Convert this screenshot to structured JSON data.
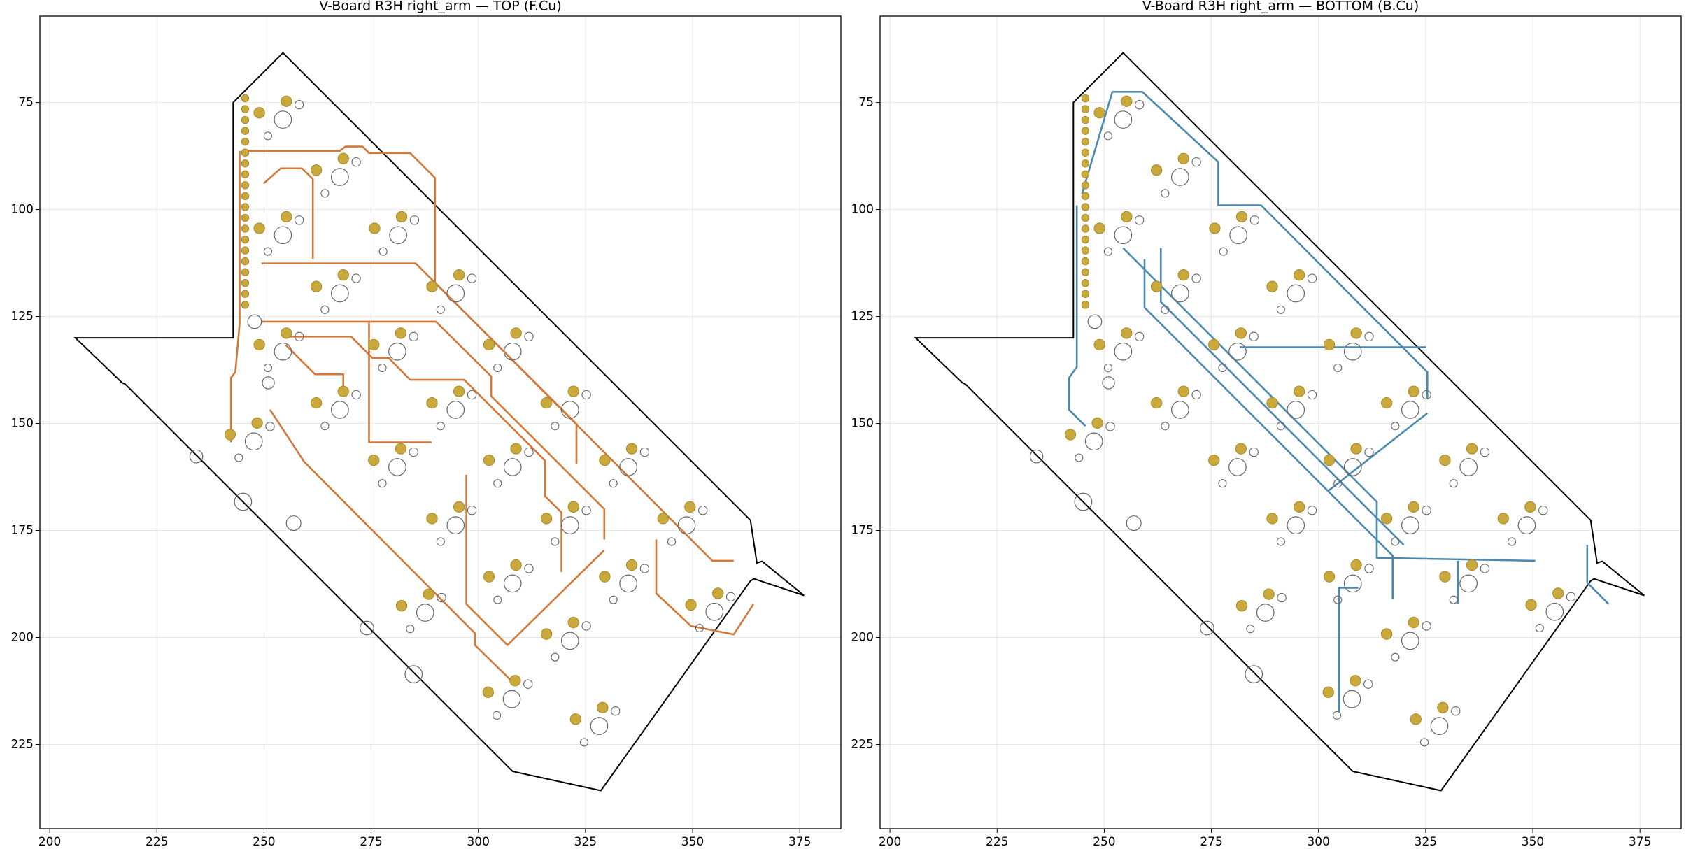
{
  "chart_data": [
    {
      "type": "pcb",
      "title": "V-Board R3H right_arm — TOP (F.Cu)",
      "xlim": [
        197.7,
        384.6
      ],
      "ylim": [
        244.7,
        54.8
      ],
      "xticks": [
        200,
        225,
        250,
        275,
        300,
        325,
        350,
        375
      ],
      "yticks": [
        75,
        100,
        125,
        150,
        175,
        200,
        225
      ],
      "grid": true,
      "trace_color": "#d2793a",
      "pad_color": "#c9a83c",
      "outline": {
        "x": [
          254.4,
          242.8,
          242.8,
          206,
          216.9,
          217.6,
          308,
          328.6,
          363.5,
          364.3,
          376,
          366.2,
          365,
          363.5
        ],
        "y": [
          63.4,
          75,
          130,
          130,
          140.5,
          140.8,
          231.3,
          235.8,
          186.8,
          186.3,
          190.2,
          182.2,
          182.6,
          172.6
        ]
      },
      "connector": {
        "x": [
          245.6,
          245.6,
          245.6,
          245.6,
          245.6,
          245.6,
          245.6,
          245.6,
          245.6,
          245.6,
          245.6,
          245.6,
          245.6,
          245.6,
          245.6,
          245.6,
          245.6,
          245.6,
          245.6,
          245.6
        ],
        "y": [
          74,
          76.54,
          79.08,
          81.62,
          84.16,
          86.7,
          89.24,
          91.78,
          94.32,
          96.86,
          99.4,
          101.94,
          104.48,
          107.02,
          109.56,
          112.1,
          114.64,
          117.18,
          119.72,
          122.26
        ]
      },
      "switches": {
        "x": [
          254.4,
          267.7,
          254.4,
          281.3,
          267.7,
          294.7,
          254.4,
          281.1,
          267.7,
          294.7,
          308.0,
          321.4,
          281.1,
          308.0,
          335.0,
          294.7,
          321.4,
          348.6,
          308.0,
          335.0,
          355.1,
          287.6,
          321.4,
          307.8,
          328.2,
          247.6
        ],
        "y": [
          79.0,
          92.4,
          106.0,
          106.0,
          119.6,
          119.6,
          133.2,
          133.2,
          146.8,
          146.8,
          133.2,
          146.8,
          160.2,
          160.2,
          160.2,
          173.8,
          173.8,
          173.8,
          187.4,
          187.4,
          194.0,
          194.2,
          200.8,
          214.4,
          220.7,
          154.2
        ]
      },
      "holes": {
        "x": [
          247.8,
          251.0,
          234.2,
          245.1,
          256.9,
          274.0,
          284.9
        ],
        "y": [
          126.2,
          140.5,
          157.7,
          168.3,
          173.3,
          197.8,
          208.6
        ],
        "sizes": [
          1.6,
          1.4,
          1.5,
          2.0,
          1.7,
          1.6,
          2.0
        ]
      },
      "traces": [
        {
          "x": [
            244.3,
            244.3,
            243.3,
            242.3,
            242.3
          ],
          "y": [
            86.3,
            126.7,
            138.0,
            139.3,
            154.4
          ]
        },
        {
          "x": [
            245.8,
            267.7,
            269.0,
            273.0,
            274.5,
            284.1,
            289.9,
            289.9,
            322.9,
            322.9
          ],
          "y": [
            86.3,
            86.3,
            85.3,
            85.3,
            86.8,
            86.8,
            92.6,
            117.1,
            150.1,
            159.5
          ]
        },
        {
          "x": [
            249.9,
            253.9,
            258.9,
            261.4,
            261.4
          ],
          "y": [
            93.9,
            90.4,
            90.4,
            92.9,
            111.6
          ]
        },
        {
          "x": [
            249.4,
            285.4,
            294.4,
            354.6,
            359.6
          ],
          "y": [
            112.6,
            112.6,
            121.6,
            182.1,
            182.1
          ]
        },
        {
          "x": [
            249.6,
            290.1,
            303.0,
            303.0,
            329.4,
            329.4
          ],
          "y": [
            126.2,
            126.2,
            139.0,
            143.6,
            170.0,
            177.1
          ]
        },
        {
          "x": [
            255.1,
            270.3,
            275.3,
            279.1,
            284.1,
            296.7,
            315.6,
            315.6,
            319.4,
            319.4
          ],
          "y": [
            129.7,
            129.7,
            134.7,
            134.7,
            139.8,
            139.8,
            158.7,
            167.0,
            170.8,
            184.7
          ]
        },
        {
          "x": [
            251.4,
            259.4,
            299.2,
            299.2,
            308.0
          ],
          "y": [
            146.8,
            159.0,
            199.0,
            201.8,
            210.4
          ]
        },
        {
          "x": [
            297.2,
            297.2,
            306.8,
            329.4
          ],
          "y": [
            162.0,
            192.2,
            201.8,
            179.6
          ]
        },
        {
          "x": [
            341.5,
            341.5,
            349.6,
            359.6,
            364.2
          ],
          "y": [
            177.1,
            189.7,
            197.3,
            199.3,
            192.2
          ]
        },
        {
          "x": [
            274.5,
            274.5,
            289.1
          ],
          "y": [
            126.2,
            154.4,
            154.4
          ]
        },
        {
          "x": [
            255.1,
            261.9,
            268.5,
            268.5
          ],
          "y": [
            131.7,
            138.5,
            138.5,
            142.3
          ]
        }
      ]
    },
    {
      "type": "pcb",
      "title": "V-Board R3H right_arm — BOTTOM (B.Cu)",
      "xlim": [
        197.7,
        384.6
      ],
      "ylim": [
        244.7,
        54.8
      ],
      "xticks": [
        200,
        225,
        250,
        275,
        300,
        325,
        350,
        375
      ],
      "yticks": [
        75,
        100,
        125,
        150,
        175,
        200,
        225
      ],
      "grid": true,
      "trace_color": "#4a8ab0",
      "pad_color": "#c9a83c",
      "outline": {
        "x": [
          254.4,
          242.8,
          242.8,
          206,
          216.9,
          217.6,
          308,
          328.6,
          363.5,
          364.3,
          376,
          366.2,
          365,
          363.5
        ],
        "y": [
          63.4,
          75,
          130,
          130,
          140.5,
          140.8,
          231.3,
          235.8,
          186.8,
          186.3,
          190.2,
          182.2,
          182.6,
          172.6
        ]
      },
      "connector": {
        "x": [
          245.6,
          245.6,
          245.6,
          245.6,
          245.6,
          245.6,
          245.6,
          245.6,
          245.6,
          245.6,
          245.6,
          245.6,
          245.6,
          245.6,
          245.6,
          245.6,
          245.6,
          245.6,
          245.6,
          245.6
        ],
        "y": [
          74,
          76.54,
          79.08,
          81.62,
          84.16,
          86.7,
          89.24,
          91.78,
          94.32,
          96.86,
          99.4,
          101.94,
          104.48,
          107.02,
          109.56,
          112.1,
          114.64,
          117.18,
          119.72,
          122.26
        ]
      },
      "switches": {
        "x": [
          254.4,
          267.7,
          254.4,
          281.3,
          267.7,
          294.7,
          254.4,
          281.1,
          267.7,
          294.7,
          308.0,
          321.4,
          281.1,
          308.0,
          335.0,
          294.7,
          321.4,
          348.6,
          308.0,
          335.0,
          355.1,
          287.6,
          321.4,
          307.8,
          328.2,
          247.6
        ],
        "y": [
          79.0,
          92.4,
          106.0,
          106.0,
          119.6,
          119.6,
          133.2,
          133.2,
          146.8,
          146.8,
          133.2,
          146.8,
          160.2,
          160.2,
          160.2,
          173.8,
          173.8,
          173.8,
          187.4,
          187.4,
          194.0,
          194.2,
          200.8,
          214.4,
          220.7,
          154.2
        ]
      },
      "holes": {
        "x": [
          247.8,
          251.0,
          234.2,
          245.1,
          256.9,
          274.0,
          284.9
        ],
        "y": [
          126.2,
          140.5,
          157.7,
          168.3,
          173.3,
          197.8,
          208.6
        ],
        "sizes": [
          1.6,
          1.4,
          1.5,
          2.0,
          1.7,
          1.6,
          2.0
        ]
      },
      "traces": [
        {
          "x": [
            244.8,
            251.9,
            258.9,
            276.6,
            276.6,
            286.6,
            325.4,
            325.4
          ],
          "y": [
            96.4,
            72.5,
            72.5,
            88.9,
            99.0,
            99.0,
            138.0,
            144.3
          ]
        },
        {
          "x": [
            243.6,
            243.6,
            241.8,
            241.8,
            245.6
          ],
          "y": [
            99.0,
            136.8,
            139.3,
            146.8,
            150.6
          ]
        },
        {
          "x": [
            254.4,
            313.6,
            313.6,
            350.6
          ],
          "y": [
            109.0,
            168.3,
            181.4,
            182.1
          ]
        },
        {
          "x": [
            259.4,
            259.4,
            317.3,
            317.3
          ],
          "y": [
            111.6,
            122.9,
            180.9,
            191.0
          ]
        },
        {
          "x": [
            263.2,
            263.2,
            319.9
          ],
          "y": [
            109.0,
            121.6,
            178.4
          ]
        },
        {
          "x": [
            281.6,
            325.1
          ],
          "y": [
            132.2,
            132.2
          ]
        },
        {
          "x": [
            309.3,
            304.8,
            304.8
          ],
          "y": [
            188.4,
            188.4,
            217.4
          ]
        },
        {
          "x": [
            325.4,
            302.2
          ],
          "y": [
            147.6,
            165.8
          ]
        },
        {
          "x": [
            362.7,
            362.7,
            367.7
          ],
          "y": [
            178.4,
            187.2,
            192.2
          ]
        },
        {
          "x": [
            332.5,
            332.5
          ],
          "y": [
            182.1,
            192.2
          ]
        }
      ]
    }
  ]
}
